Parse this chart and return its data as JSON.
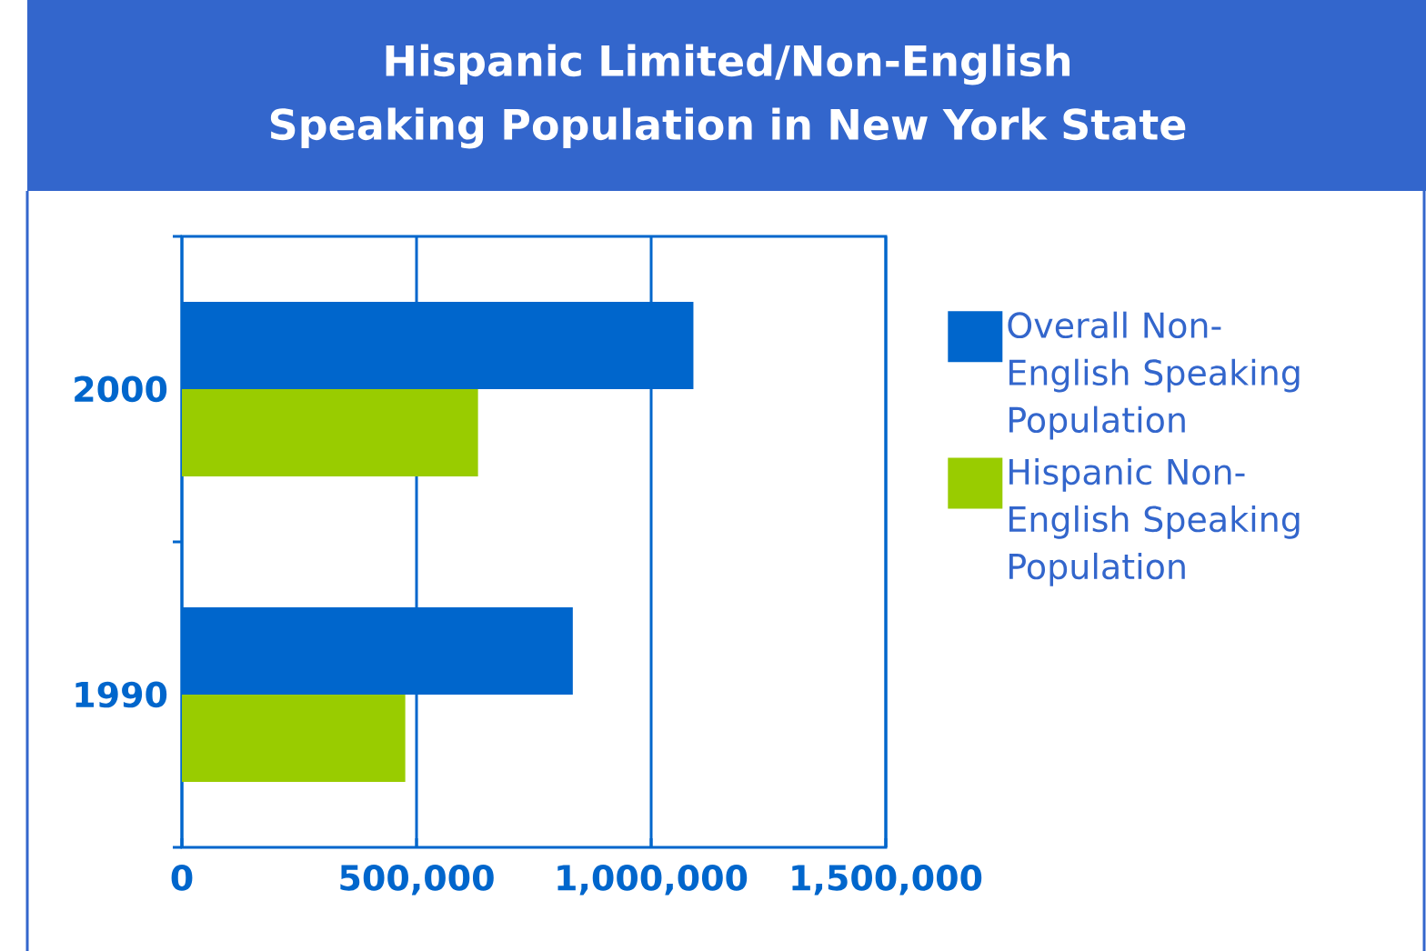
{
  "chart_data": {
    "type": "bar",
    "orientation": "horizontal",
    "title": "Hispanic Limited/Non-English Speaking Population in New York State",
    "categories": [
      "2000",
      "1990"
    ],
    "series": [
      {
        "name": "Overall Non-English Speaking Population",
        "color": "#0066cc",
        "values": [
          1090000,
          833000
        ]
      },
      {
        "name": "Hispanic Non-English Speaking Population",
        "color": "#99cc00",
        "values": [
          631000,
          476000
        ]
      }
    ],
    "xlim": [
      0,
      1500000
    ],
    "xticks": [
      0,
      {
        "value": 500000,
        "label": "500,000"
      },
      {
        "value": 1000000,
        "label": "1,000,000"
      },
      {
        "value": 1500000,
        "label": "1,500,000"
      }
    ],
    "grid": "x",
    "legend": "right"
  }
}
